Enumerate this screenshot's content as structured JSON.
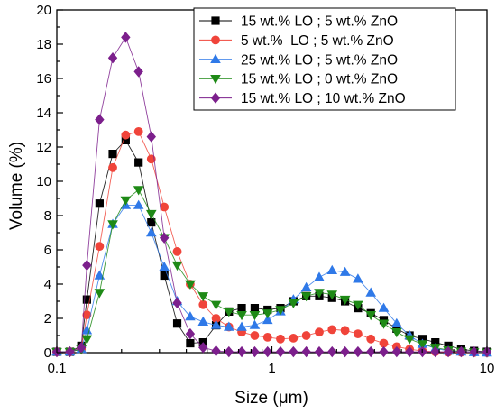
{
  "chart_data": {
    "type": "scatter",
    "title": "",
    "xlabel": "Size (μm)",
    "ylabel": "Volume (%)",
    "x_scale": "log",
    "xlim": [
      0.1,
      10
    ],
    "ylim": [
      0,
      20
    ],
    "x_ticks": [
      0.1,
      1,
      10
    ],
    "x_tick_labels": [
      "0.1",
      "1",
      "10"
    ],
    "y_ticks": [
      0,
      2,
      4,
      6,
      8,
      10,
      12,
      14,
      16,
      18,
      20
    ],
    "y_tick_labels": [
      "0",
      "2",
      "4",
      "6",
      "8",
      "10",
      "12",
      "14",
      "16",
      "18",
      "20"
    ],
    "grid": false,
    "legend_position": "top-right",
    "x": [
      0.1,
      0.115,
      0.13,
      0.138,
      0.158,
      0.182,
      0.209,
      0.24,
      0.275,
      0.316,
      0.363,
      0.417,
      0.479,
      0.55,
      0.631,
      0.724,
      0.832,
      0.955,
      1.096,
      1.259,
      1.445,
      1.66,
      1.905,
      2.188,
      2.512,
      2.884,
      3.311,
      3.802,
      4.365,
      5.012,
      5.754,
      6.607,
      7.586,
      8.71,
      10.0
    ],
    "series": [
      {
        "name": "15 wt.% LO ; 5 wt.% ZnO",
        "color": "#000000",
        "marker": "square",
        "values": [
          0.05,
          0.05,
          0.4,
          3.1,
          8.7,
          11.6,
          12.4,
          11.1,
          7.6,
          4.5,
          1.7,
          0.55,
          0.6,
          1.6,
          2.4,
          2.6,
          2.6,
          2.5,
          2.6,
          3.0,
          3.3,
          3.3,
          3.2,
          3.0,
          2.6,
          2.3,
          1.9,
          1.4,
          1.0,
          0.8,
          0.6,
          0.4,
          0.2,
          0.1,
          0.05
        ]
      },
      {
        "name": "5 wt.%  LO ; 5 wt.% ZnO",
        "color": "#F0443A",
        "marker": "circle",
        "values": [
          0.05,
          0.05,
          0.2,
          2.2,
          6.2,
          10.8,
          12.7,
          12.9,
          11.3,
          8.5,
          5.9,
          4.0,
          2.8,
          2.0,
          1.5,
          1.2,
          1.0,
          0.9,
          0.8,
          0.85,
          1.0,
          1.2,
          1.35,
          1.3,
          1.1,
          0.8,
          0.55,
          0.35,
          0.2,
          0.1,
          0.05,
          0.03,
          0.02,
          0.01,
          0.0
        ]
      },
      {
        "name": "25 wt.% LO ; 5 wt.% ZnO",
        "color": "#2F79E8",
        "marker": "triangle-up",
        "values": [
          0.05,
          0.05,
          0.2,
          1.3,
          4.5,
          7.5,
          8.6,
          8.6,
          7.0,
          5.0,
          3.0,
          2.1,
          1.8,
          1.6,
          1.5,
          1.5,
          1.6,
          1.9,
          2.4,
          3.1,
          3.8,
          4.4,
          4.8,
          4.7,
          4.3,
          3.5,
          2.6,
          1.7,
          1.0,
          0.5,
          0.25,
          0.1,
          0.05,
          0.02,
          0.0
        ]
      },
      {
        "name": "15 wt.% LO ; 0 wt.% ZnO",
        "color": "#1E8A16",
        "marker": "triangle-down",
        "values": [
          0.05,
          0.05,
          0.2,
          0.8,
          3.5,
          7.5,
          8.9,
          9.5,
          8.1,
          6.7,
          5.1,
          4.0,
          3.3,
          2.8,
          2.4,
          2.2,
          2.2,
          2.3,
          2.5,
          2.9,
          3.3,
          3.5,
          3.4,
          3.1,
          2.8,
          2.2,
          1.7,
          1.2,
          0.8,
          0.5,
          0.3,
          0.15,
          0.07,
          0.03,
          0.01
        ]
      },
      {
        "name": "15 wt.% LO ; 10 wt.% ZnO",
        "color": "#7C1F8C",
        "marker": "diamond",
        "values": [
          0.05,
          0.05,
          0.3,
          5.1,
          13.6,
          17.2,
          18.4,
          16.4,
          12.6,
          6.7,
          2.9,
          1.1,
          0.3,
          0.1,
          0.05,
          0.05,
          0.05,
          0.05,
          0.05,
          0.05,
          0.05,
          0.05,
          0.05,
          0.05,
          0.05,
          0.05,
          0.05,
          0.05,
          0.05,
          0.05,
          0.05,
          0.05,
          0.05,
          0.05,
          0.05
        ]
      }
    ]
  }
}
